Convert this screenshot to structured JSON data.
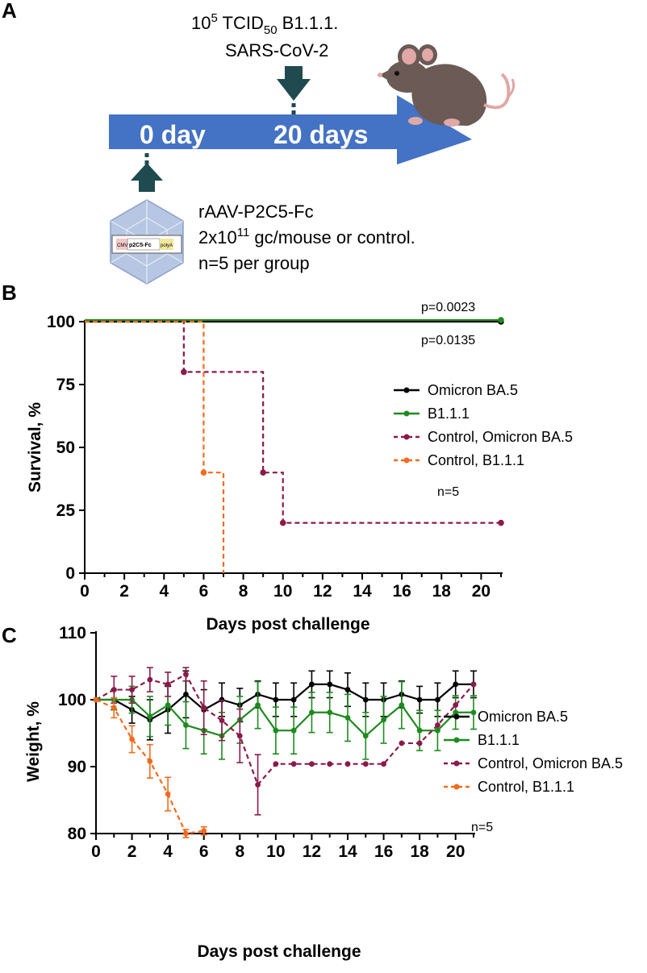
{
  "panel_labels": {
    "a": "A",
    "b": "B",
    "c": "C"
  },
  "schematic": {
    "challenge_line1_base": "10",
    "challenge_line1_exp": "5",
    "challenge_line1_mid": " TCID",
    "challenge_line1_sub": "50",
    "challenge_line1_tail": " B1.1.1.",
    "challenge_line2": "SARS-CoV-2",
    "timeline_day0": "0 day",
    "timeline_day20": "20 days",
    "vector_line1": "rAAV-P2C5-Fc",
    "vector_line2_base": "2x10",
    "vector_line2_exp": "11",
    "vector_line2_tail": " gc/mouse or control.",
    "vector_line3": "n=5 per group",
    "plasmid_labels": [
      "CMV",
      "p2C5-Fc",
      "polyA"
    ],
    "arrow_color": "#4472C4",
    "pointer_color": "#1F4A4F"
  },
  "colors": {
    "omicron": "#000000",
    "b111": "#1E8B1E",
    "ctrl_omicron": "#8B1A4A",
    "ctrl_b111": "#F26B1D"
  },
  "chart_data": [
    {
      "type": "line",
      "subtype": "step survival",
      "ylabel": "Survival, %",
      "xlabel": "Days post challenge",
      "xlim": [
        0,
        21
      ],
      "ylim": [
        0,
        100
      ],
      "xticks": [
        0,
        2,
        4,
        6,
        8,
        10,
        12,
        14,
        16,
        18,
        20
      ],
      "yticks": [
        0,
        25,
        50,
        75,
        100
      ],
      "annotations": {
        "p1": "p=0.0023",
        "p2": "p=0.0135",
        "n": "n=5"
      },
      "legend": [
        "Omicron BA.5",
        "B1.1.1",
        "Control, Omicron BA.5",
        "Control, B1.1.1"
      ],
      "series": [
        {
          "name": "Omicron BA.5",
          "style": "solid",
          "x": [
            0,
            21
          ],
          "y": [
            100,
            100
          ]
        },
        {
          "name": "B1.1.1",
          "style": "solid",
          "x": [
            0,
            21
          ],
          "y": [
            100,
            100
          ]
        },
        {
          "name": "Control, Omicron BA.5",
          "style": "dashed",
          "x": [
            0,
            5,
            9,
            10,
            21
          ],
          "y": [
            100,
            80,
            40,
            20,
            20
          ]
        },
        {
          "name": "Control, B1.1.1",
          "style": "dashed",
          "x": [
            0,
            6,
            7
          ],
          "y": [
            100,
            40,
            0
          ]
        }
      ]
    },
    {
      "type": "line",
      "ylabel": "Weight, %",
      "xlabel": "Days post challenge",
      "xlim": [
        0,
        21
      ],
      "ylim": [
        80,
        110
      ],
      "xticks": [
        0,
        2,
        4,
        6,
        8,
        10,
        12,
        14,
        16,
        18,
        20
      ],
      "yticks": [
        80,
        90,
        100,
        110
      ],
      "annotations": {
        "n": "n=5"
      },
      "legend": [
        "Omicron BA.5",
        "B1.1.1",
        "Control, Omicron BA.5",
        "Control, B1.1.1"
      ],
      "series": [
        {
          "name": "Omicron BA.5",
          "style": "solid",
          "x": [
            0,
            1,
            2,
            3,
            4,
            5,
            6,
            7,
            8,
            9,
            10,
            11,
            12,
            13,
            14,
            15,
            16,
            17,
            18,
            19,
            20,
            21
          ],
          "y": [
            100,
            100,
            98.5,
            97,
            98.5,
            100.8,
            98.5,
            100,
            99.2,
            100.8,
            100,
            100,
            102.3,
            102.3,
            101.5,
            100,
            100,
            100.8,
            100,
            100,
            102.3,
            102.3
          ],
          "err": [
            0,
            1.5,
            2,
            3,
            3.5,
            3.5,
            3,
            2.5,
            2.5,
            2,
            2.5,
            2.5,
            2,
            2,
            2.5,
            2.5,
            2.5,
            2,
            2,
            2.5,
            2,
            2
          ]
        },
        {
          "name": "B1.1.1",
          "style": "solid",
          "x": [
            0,
            1,
            2,
            3,
            4,
            5,
            6,
            7,
            8,
            9,
            10,
            11,
            12,
            13,
            14,
            15,
            16,
            17,
            18,
            19,
            20,
            21
          ],
          "y": [
            100,
            100,
            100,
            97.5,
            99.2,
            96.2,
            95.4,
            94.6,
            97,
            99.2,
            95.4,
            95.4,
            98.1,
            98.1,
            97.3,
            94.6,
            97,
            99.2,
            95.4,
            95.4,
            98.1,
            98.1
          ],
          "err": [
            0,
            1.5,
            2,
            3,
            3,
            3.5,
            3.5,
            3.5,
            3.5,
            3.5,
            3.5,
            3.5,
            3,
            3,
            3.5,
            3.5,
            3.5,
            3.5,
            3,
            3,
            2.5,
            2.5
          ]
        },
        {
          "name": "Control, Omicron BA.5",
          "style": "dashed",
          "x": [
            0,
            1,
            2,
            3,
            4,
            5,
            6,
            7,
            8,
            9,
            10,
            11,
            12,
            13,
            14,
            15,
            16,
            17,
            18,
            19,
            20,
            21
          ],
          "y": [
            100,
            101.5,
            101.5,
            103,
            102.3,
            103.8,
            98.8,
            96.9,
            94.6,
            87.3,
            90.4,
            90.4,
            90.4,
            90.4,
            90.4,
            90.4,
            90.4,
            93.5,
            93.5,
            96.2,
            99.2,
            102.3
          ],
          "err": [
            0,
            2,
            2,
            1.8,
            1.8,
            1,
            4,
            3,
            4,
            4.5,
            0,
            0,
            0,
            0,
            0,
            0,
            0,
            0,
            0,
            0,
            0,
            0
          ]
        },
        {
          "name": "Control, B1.1.1",
          "style": "dashed",
          "x": [
            0,
            1,
            2,
            3,
            4,
            5,
            6
          ],
          "y": [
            100,
            98.8,
            94.1,
            90.8,
            85.9,
            80,
            80.4
          ],
          "err": [
            0,
            1.5,
            2,
            2.5,
            2.5,
            0.6,
            0.6
          ]
        }
      ]
    }
  ]
}
